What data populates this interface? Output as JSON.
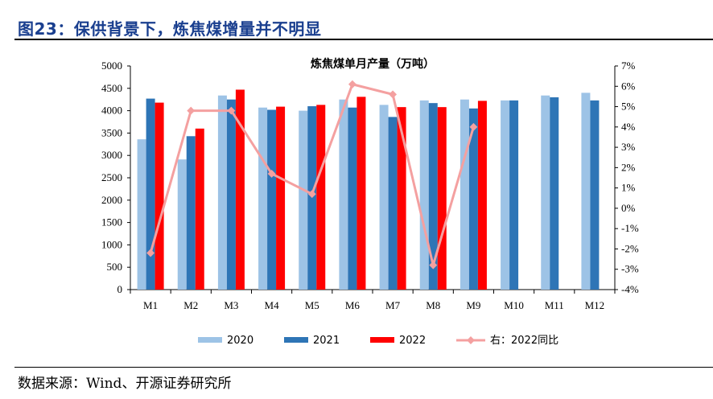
{
  "figure": {
    "title": "图23：保供背景下，炼焦煤增量并不明显",
    "source": "数据来源：Wind、开源证券研究所"
  },
  "colors": {
    "title": "#1a3f8f",
    "s2020": "#9dc3e6",
    "s2021": "#2e75b6",
    "s2022": "#ff0000",
    "yoy": "#f4a0a0"
  },
  "chart_data": {
    "type": "bar",
    "title": "炼焦煤单月产量（万吨）",
    "categories": [
      "M1",
      "M2",
      "M3",
      "M4",
      "M5",
      "M6",
      "M7",
      "M8",
      "M9",
      "M10",
      "M11",
      "M12"
    ],
    "series": [
      {
        "name": "2020",
        "values": [
          3360,
          2910,
          4340,
          4070,
          4000,
          4250,
          4130,
          4230,
          4250,
          4230,
          4340,
          4400
        ]
      },
      {
        "name": "2021",
        "values": [
          4270,
          3430,
          4250,
          4020,
          4100,
          4070,
          3860,
          4170,
          4050,
          4230,
          4300,
          4230
        ]
      },
      {
        "name": "2022",
        "values": [
          4180,
          3600,
          4470,
          4090,
          4130,
          4310,
          4080,
          4080,
          4220,
          null,
          null,
          null
        ]
      }
    ],
    "secondary_series": {
      "name": "右：2022同比",
      "type": "line",
      "axis": "right",
      "values": [
        -2.2,
        4.8,
        4.8,
        1.7,
        0.7,
        6.1,
        5.6,
        -2.8,
        4.0,
        null,
        null,
        null
      ]
    },
    "y_left": {
      "range": [
        0,
        5000
      ],
      "ticks": [
        "0",
        "500",
        "1000",
        "1500",
        "2000",
        "2500",
        "3000",
        "3500",
        "4000",
        "4500",
        "5000"
      ]
    },
    "y_right": {
      "range": [
        -4,
        7
      ],
      "ticks": [
        "-4%",
        "-3%",
        "-2%",
        "-1%",
        "0%",
        "1%",
        "2%",
        "3%",
        "4%",
        "5%",
        "6%",
        "7%"
      ]
    },
    "legend": [
      "2020",
      "2021",
      "2022",
      "右：2022同比"
    ],
    "legend_position": "bottom",
    "grid": false
  }
}
